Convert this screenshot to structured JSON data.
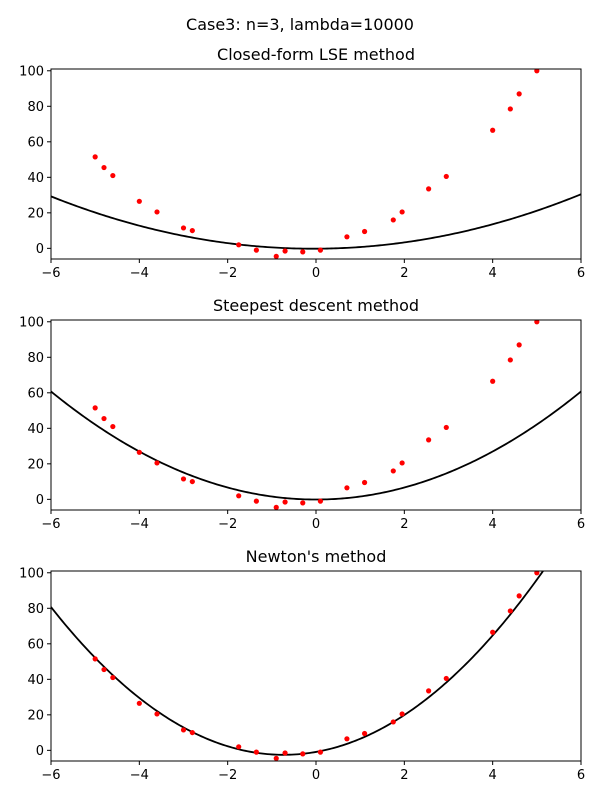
{
  "suptitle": "Case3: n=3, lambda=10000",
  "style": {
    "point_color": "#ff0000",
    "curve_color": "#000000"
  },
  "points": {
    "x": [
      -5.0,
      -4.8,
      -4.6,
      -4.0,
      -3.6,
      -3.0,
      -2.8,
      -1.75,
      -1.35,
      -0.9,
      -0.7,
      -0.3,
      0.1,
      0.7,
      1.1,
      1.75,
      1.95,
      2.55,
      2.95,
      4.0,
      4.4,
      4.6,
      5.0
    ],
    "y": [
      51.5,
      45.5,
      41,
      26.5,
      20.5,
      11.5,
      10,
      2,
      -1,
      -4.5,
      -1.5,
      -2,
      -1,
      6.5,
      9.5,
      16,
      20.5,
      33.5,
      40.5,
      66.5,
      78.5,
      87,
      100
    ]
  },
  "chart_data": [
    {
      "type": "scatter",
      "title": "Closed-form LSE method",
      "xlim": [
        -6,
        6
      ],
      "ylim": [
        -6,
        101
      ],
      "xticks": [
        -6,
        -4,
        -2,
        0,
        2,
        4,
        6
      ],
      "yticks": [
        0,
        20,
        40,
        60,
        80,
        100
      ],
      "grid": false,
      "fit_coefficients": {
        "a": 0.835,
        "b": 0.1,
        "c": -0.2
      }
    },
    {
      "type": "scatter",
      "title": "Steepest descent method",
      "xlim": [
        -6,
        6
      ],
      "ylim": [
        -6,
        101
      ],
      "xticks": [
        -6,
        -4,
        -2,
        0,
        2,
        4,
        6
      ],
      "yticks": [
        0,
        20,
        40,
        60,
        80,
        100
      ],
      "grid": false,
      "fit_coefficients": {
        "a": 1.69,
        "b": 0.0,
        "c": -0.1
      }
    },
    {
      "type": "scatter",
      "title": "Newton's method",
      "xlim": [
        -6,
        6
      ],
      "ylim": [
        -6,
        101
      ],
      "xticks": [
        -6,
        -4,
        -2,
        0,
        2,
        4,
        6
      ],
      "yticks": [
        0,
        20,
        40,
        60,
        80,
        100
      ],
      "grid": false,
      "fit_coefficients": {
        "a": 3.0,
        "b": 4.4,
        "c": -0.9
      }
    }
  ]
}
